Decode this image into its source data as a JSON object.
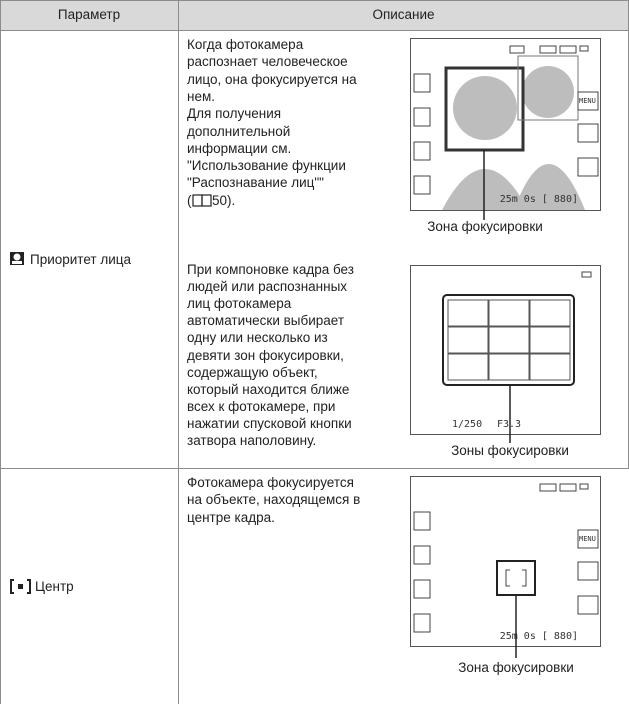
{
  "table": {
    "header": [
      "Параметр",
      "Описание"
    ],
    "rows": [
      {
        "parameter": "Приоритет лица",
        "descriptions": [
          {
            "lines": [
              "Когда фотокамера",
              "распознает человеческое",
              "лицо, она фокусируется на",
              "нем.",
              "Для получения",
              "дополнительной",
              "информации см.",
              "\"Использование функции",
              "\"Распознавание лиц\"\""
            ],
            "reference": [
              "(",
              "50)."
            ],
            "screen": {
              "status": "25m 0s [ 880]",
              "menu": "MENU"
            },
            "caption": "Зона фокусировки"
          },
          {
            "lines": [
              "При компоновке кадра без",
              "людей или распознанных",
              "лиц фотокамера",
              "автоматически выбирает",
              "одну или несколько из",
              "девяти зон фокусировки,",
              "содержащую объект,",
              "который находится ближе",
              "всех к фотокамере, при",
              "нажатии спусковой кнопки",
              "затвора наполовину."
            ],
            "screen": {
              "shutter": "1/250",
              "aperture": "F3.3"
            },
            "caption": "Зоны фокусировки"
          }
        ]
      },
      {
        "parameter": "Центр",
        "descriptions": [
          {
            "lines": [
              "Фотокамера фокусируется",
              "на объекте, находящемся в",
              "центре кадра."
            ],
            "screen": {
              "status": "25m 0s [ 880]",
              "menu": "MENU"
            },
            "caption": "Зона фокусировки"
          }
        ]
      }
    ]
  }
}
